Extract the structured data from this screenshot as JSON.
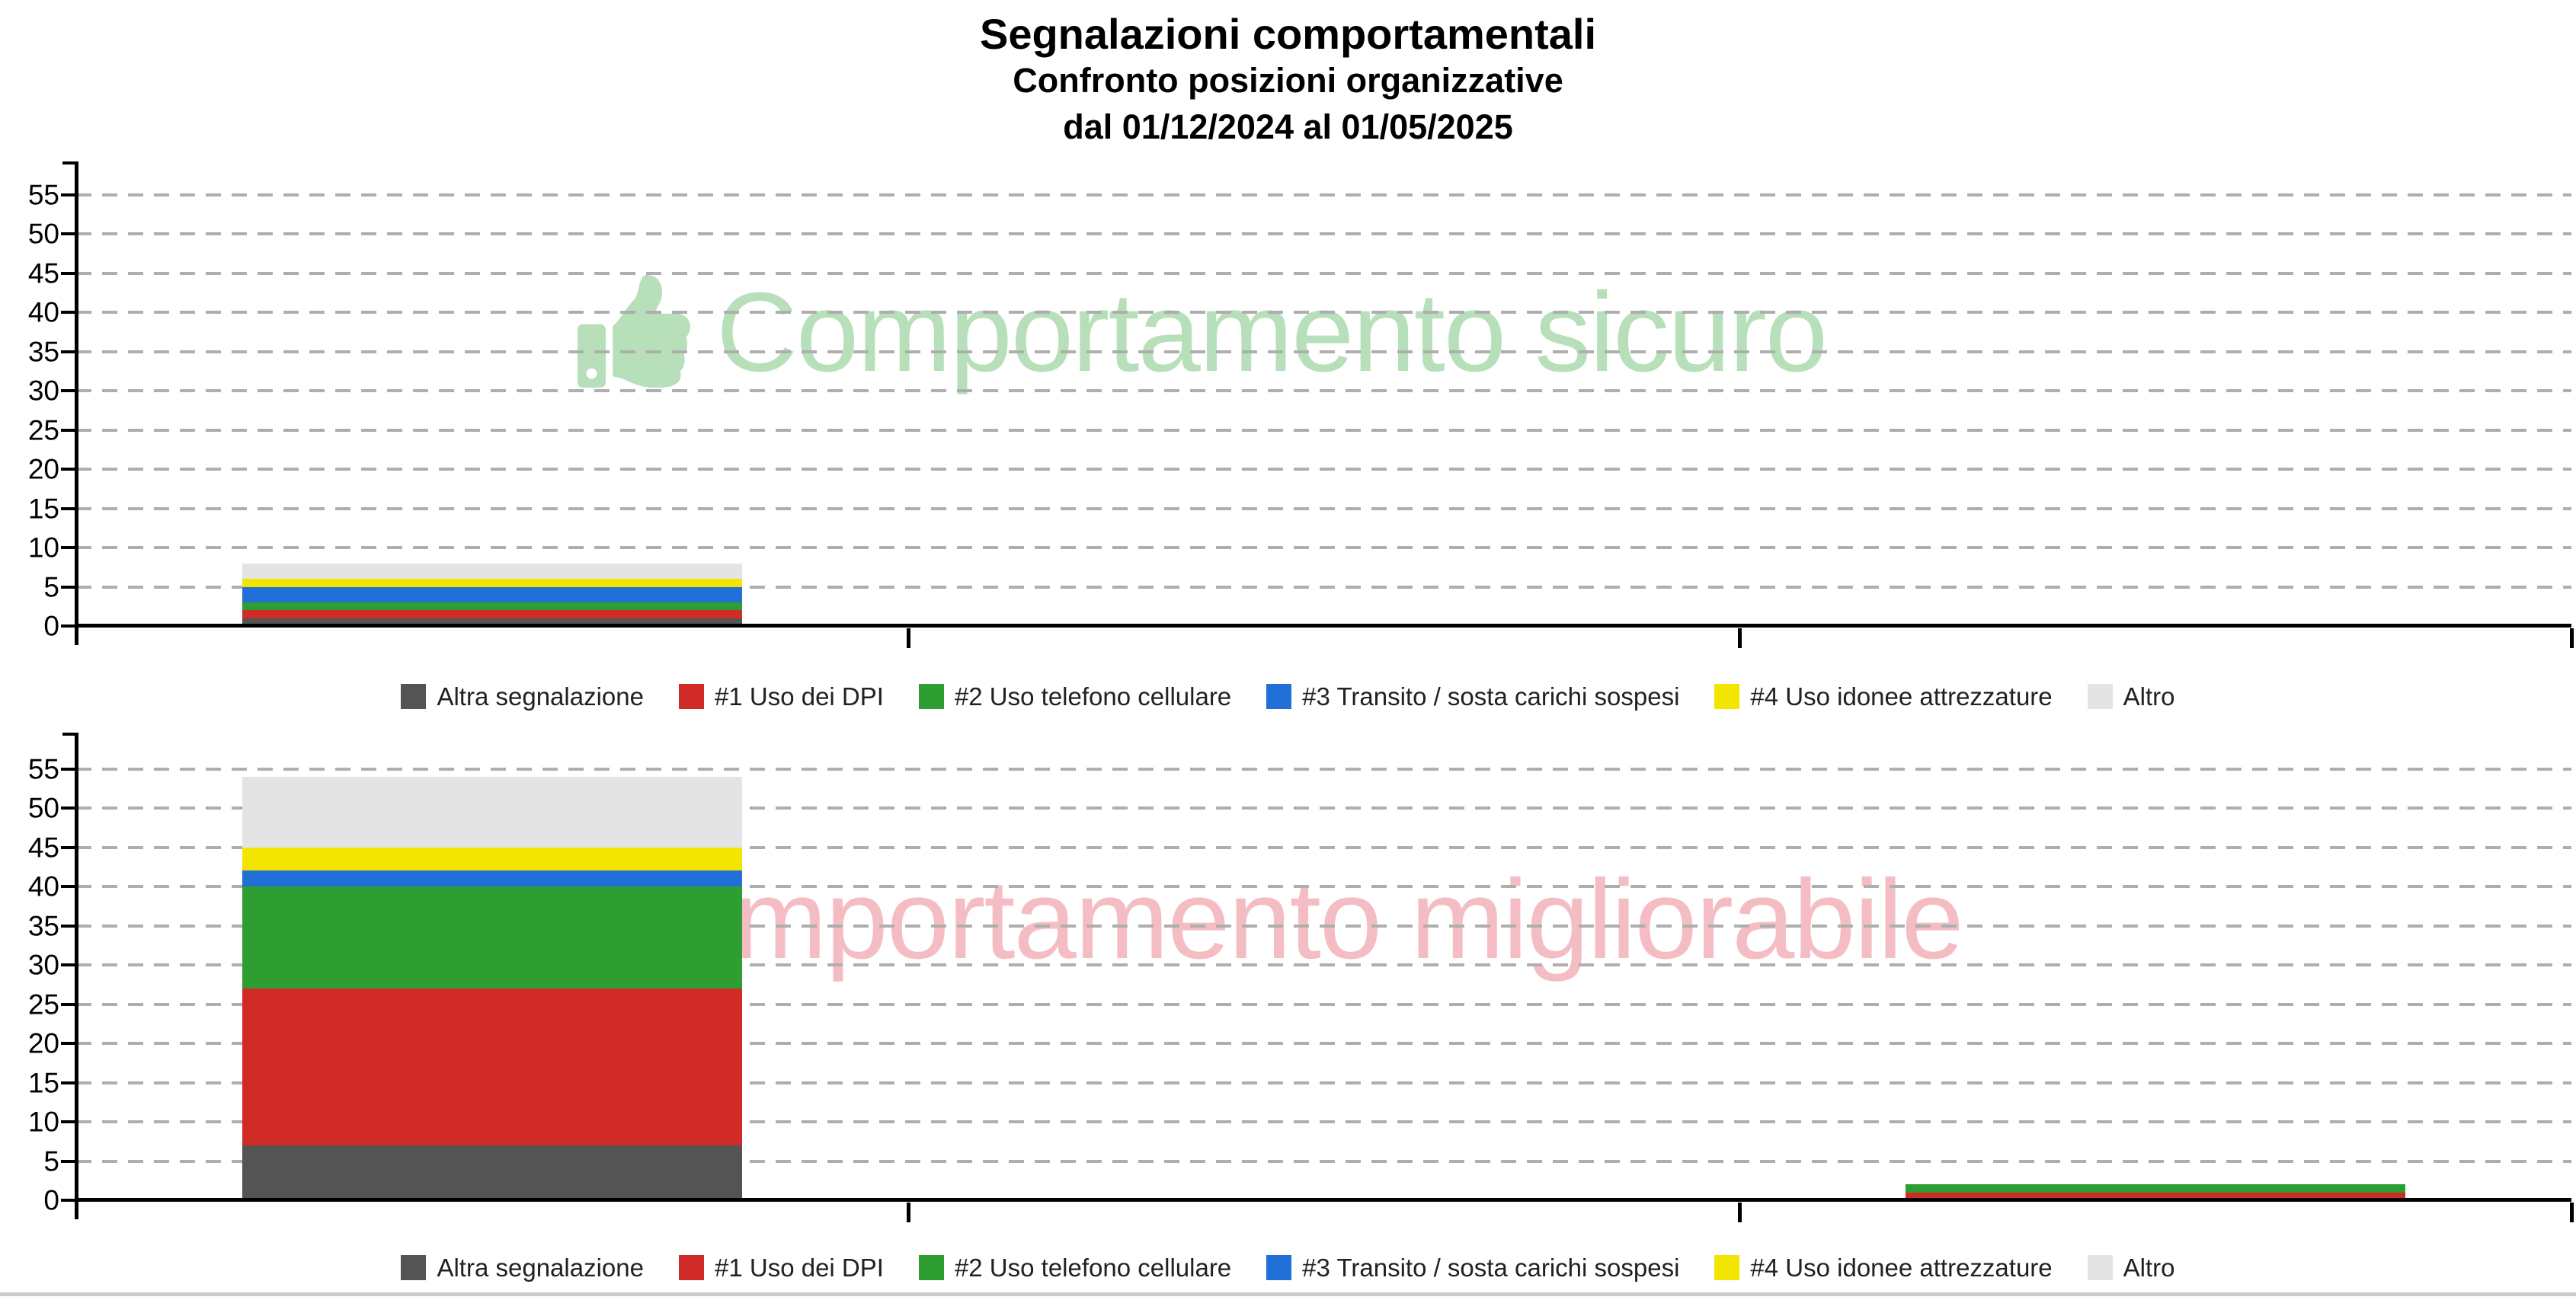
{
  "title": {
    "line1": "Segnalazioni comportamentali",
    "line2": "Confronto posizioni organizzative",
    "line3": "dal 01/12/2024 al 01/05/2025"
  },
  "axes": {
    "y_ticks": [
      0,
      5,
      10,
      15,
      20,
      25,
      30,
      35,
      40,
      45,
      50,
      55
    ],
    "gridline_color": "#aeaeae",
    "axis_color": "#000000"
  },
  "legend": {
    "items": [
      {
        "label": "Altra segnalazione",
        "color": "#545454"
      },
      {
        "label": "#1 Uso dei DPI",
        "color": "#d12b28"
      },
      {
        "label": "#2 Uso telefono cellulare",
        "color": "#2f9e32"
      },
      {
        "label": "#3 Transito / sosta carichi sospesi",
        "color": "#2170d8"
      },
      {
        "label": "#4 Uso idonee attrezzature",
        "color": "#f2e500"
      },
      {
        "label": "Altro",
        "color": "#e4e4e4"
      }
    ]
  },
  "watermarks": {
    "top": {
      "icon": "thumbs-up-icon",
      "text": "Comportamento sicuro",
      "color": "#b7e0ba"
    },
    "bottom": {
      "icon": "thumbs-down-icon",
      "text": "Comportamento migliorabile",
      "color": "#f4bdc4"
    }
  },
  "chart_data": [
    {
      "type": "bar",
      "stacked": true,
      "name": "comportamento-sicuro",
      "watermark": "Comportamento sicuro",
      "categories": [
        "",
        "",
        ""
      ],
      "series": [
        {
          "name": "Altra segnalazione",
          "color": "#545454",
          "values": [
            1,
            0,
            0
          ]
        },
        {
          "name": "#1 Uso dei DPI",
          "color": "#d12b28",
          "values": [
            1,
            0,
            0
          ]
        },
        {
          "name": "#2 Uso telefono cellulare",
          "color": "#2f9e32",
          "values": [
            1,
            0,
            0
          ]
        },
        {
          "name": "#3 Transito / sosta carichi sospesi",
          "color": "#2170d8",
          "values": [
            2,
            0,
            0
          ]
        },
        {
          "name": "#4 Uso idonee attrezzature",
          "color": "#f2e500",
          "values": [
            1,
            0,
            0
          ]
        },
        {
          "name": "Altro",
          "color": "#e4e4e4",
          "values": [
            2,
            0,
            0
          ]
        }
      ],
      "totals": [
        8,
        0,
        0
      ],
      "ylim": [
        0,
        58
      ],
      "grid": "dashed-horizontal",
      "legend_position": "bottom"
    },
    {
      "type": "bar",
      "stacked": true,
      "name": "comportamento-migliorabile",
      "watermark": "Comportamento migliorabile",
      "categories": [
        "",
        "",
        ""
      ],
      "series": [
        {
          "name": "Altra segnalazione",
          "color": "#545454",
          "values": [
            7,
            0,
            0
          ]
        },
        {
          "name": "#1 Uso dei DPI",
          "color": "#d12b28",
          "values": [
            20,
            0,
            1
          ]
        },
        {
          "name": "#2 Uso telefono cellulare",
          "color": "#2f9e32",
          "values": [
            13,
            0,
            1
          ]
        },
        {
          "name": "#3 Transito / sosta carichi sospesi",
          "color": "#2170d8",
          "values": [
            2,
            0,
            0
          ]
        },
        {
          "name": "#4 Uso idonee attrezzature",
          "color": "#f2e500",
          "values": [
            3,
            0,
            0
          ]
        },
        {
          "name": "Altro",
          "color": "#e4e4e4",
          "values": [
            9,
            0,
            0
          ]
        }
      ],
      "totals": [
        54,
        0,
        2
      ],
      "ylim": [
        0,
        58
      ],
      "grid": "dashed-horizontal",
      "legend_position": "bottom"
    }
  ]
}
